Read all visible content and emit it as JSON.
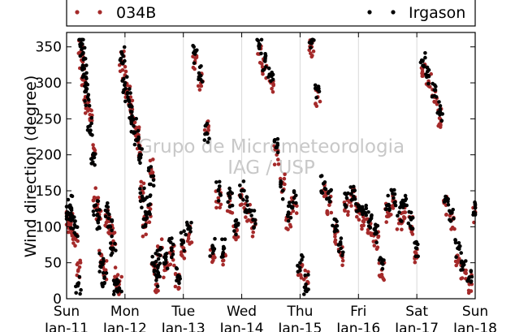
{
  "chart_data": {
    "type": "scatter",
    "ylabel": "Wind direction (degree)",
    "xlabel": "",
    "ylim": [
      0,
      370
    ],
    "yticks": [
      0,
      50,
      100,
      150,
      200,
      250,
      300,
      350
    ],
    "xlim": [
      0,
      7
    ],
    "grid": "vertical",
    "legend_position": "top",
    "xticks": [
      {
        "x": 0,
        "day": "Sun",
        "date": "Jan-11"
      },
      {
        "x": 1,
        "day": "Mon",
        "date": "Jan-12"
      },
      {
        "x": 2,
        "day": "Tue",
        "date": "Jan-13"
      },
      {
        "x": 3,
        "day": "Wed",
        "date": "Jan-14"
      },
      {
        "x": 4,
        "day": "Thu",
        "date": "Jan-15"
      },
      {
        "x": 5,
        "day": "Fri",
        "date": "Jan-16"
      },
      {
        "x": 6,
        "day": "Sat",
        "date": "Jan-17"
      },
      {
        "x": 7,
        "day": "Sun",
        "date": "Jan-18"
      }
    ],
    "series": [
      {
        "name": "034B",
        "color": "#a52a2a",
        "x": [
          0.02,
          0.06,
          0.1,
          0.15,
          0.2,
          0.25,
          0.27,
          0.3,
          0.33,
          0.36,
          0.4,
          0.45,
          0.5,
          0.55,
          0.6,
          0.65,
          0.7,
          0.75,
          0.8,
          0.85,
          0.9,
          0.95,
          1.0,
          1.05,
          1.1,
          1.15,
          1.2,
          1.25,
          1.3,
          1.35,
          1.4,
          1.45,
          1.5,
          1.55,
          1.6,
          1.7,
          1.8,
          1.9,
          2.0,
          2.1,
          2.2,
          2.3,
          2.4,
          2.5,
          2.6,
          2.7,
          2.8,
          2.9,
          3.0,
          3.1,
          3.2,
          3.3,
          3.4,
          3.5,
          3.6,
          3.7,
          3.8,
          3.9,
          4.0,
          4.1,
          4.2,
          4.3,
          4.4,
          4.5,
          4.6,
          4.7,
          4.8,
          4.9,
          5.0,
          5.1,
          5.2,
          5.3,
          5.4,
          5.5,
          5.6,
          5.7,
          5.8,
          5.9,
          6.0,
          6.1,
          6.2,
          6.3,
          6.4,
          6.5,
          6.6,
          6.7,
          6.8,
          6.9,
          7.0
        ],
        "y": [
          110,
          105,
          95,
          85,
          40,
          345,
          330,
          310,
          290,
          270,
          250,
          200,
          140,
          120,
          60,
          40,
          110,
          95,
          80,
          30,
          20,
          330,
          310,
          290,
          270,
          250,
          230,
          210,
          150,
          100,
          120,
          180,
          40,
          20,
          70,
          40,
          60,
          25,
          70,
          90,
          330,
          300,
          240,
          60,
          140,
          60,
          130,
          90,
          140,
          120,
          100,
          340,
          320,
          300,
          200,
          160,
          110,
          130,
          40,
          30,
          350,
          280,
          150,
          130,
          90,
          60,
          130,
          140,
          120,
          110,
          100,
          80,
          40,
          120,
          130,
          110,
          120,
          100,
          60,
          320,
          300,
          280,
          250,
          130,
          110,
          60,
          40,
          20,
          120
        ],
        "values_note": "Series plotted as dense scatter; y in degrees"
      },
      {
        "name": "Irgason",
        "color": "#000000",
        "x": [
          0.02,
          0.06,
          0.1,
          0.15,
          0.2,
          0.25,
          0.27,
          0.3,
          0.33,
          0.36,
          0.4,
          0.45,
          0.5,
          0.55,
          0.6,
          0.65,
          0.7,
          0.75,
          0.8,
          0.85,
          0.9,
          0.95,
          1.0,
          1.05,
          1.1,
          1.15,
          1.2,
          1.25,
          1.3,
          1.35,
          1.4,
          1.45,
          1.5,
          1.55,
          1.6,
          1.7,
          1.8,
          1.9,
          2.0,
          2.1,
          2.2,
          2.3,
          2.4,
          2.5,
          2.6,
          2.7,
          2.8,
          2.9,
          3.0,
          3.1,
          3.2,
          3.3,
          3.4,
          3.5,
          3.6,
          3.7,
          3.8,
          3.9,
          4.0,
          4.1,
          4.2,
          4.3,
          4.4,
          4.5,
          4.6,
          4.7,
          4.8,
          4.9,
          5.0,
          5.1,
          5.2,
          5.3,
          5.4,
          5.5,
          5.6,
          5.7,
          5.8,
          5.9,
          6.0,
          6.1,
          6.2,
          6.3,
          6.4,
          6.5,
          6.6,
          6.7,
          6.8,
          6.9,
          7.0
        ],
        "y": [
          120,
          130,
          110,
          100,
          20,
          355,
          340,
          320,
          300,
          280,
          240,
          190,
          130,
          110,
          50,
          30,
          120,
          100,
          70,
          20,
          15,
          340,
          300,
          280,
          260,
          240,
          220,
          200,
          140,
          110,
          130,
          170,
          50,
          30,
          60,
          50,
          70,
          30,
          80,
          100,
          340,
          310,
          230,
          70,
          150,
          70,
          140,
          100,
          150,
          130,
          110,
          350,
          330,
          310,
          210,
          150,
          120,
          140,
          50,
          20,
          355,
          290,
          160,
          140,
          100,
          70,
          140,
          150,
          130,
          120,
          110,
          90,
          50,
          130,
          140,
          120,
          130,
          110,
          70,
          330,
          310,
          290,
          260,
          140,
          120,
          70,
          50,
          30,
          130
        ]
      }
    ],
    "watermark": [
      "Grupo de Micrometeorologia",
      "IAG / USP"
    ]
  }
}
